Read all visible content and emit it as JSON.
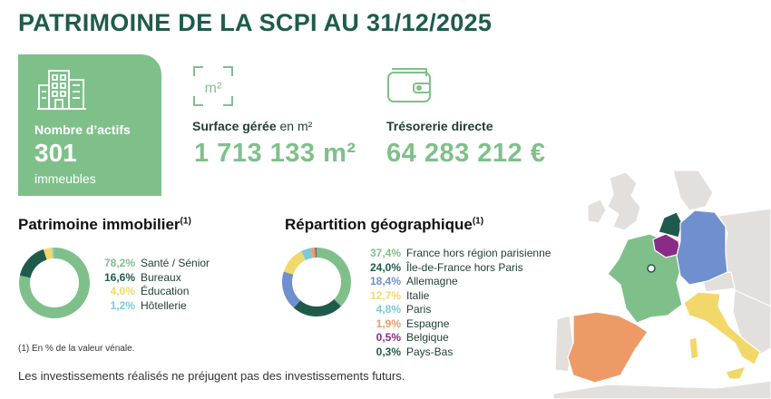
{
  "title": "PATRIMOINE DE LA SCPI AU 31/12/2025",
  "assets": {
    "label": "Nombre d’actifs",
    "count": "301",
    "unit": "immeubles",
    "icon": "building-icon",
    "bg_color": "#7fc08a"
  },
  "surface": {
    "icon_text": "m²",
    "label_bold": "Surface gérée",
    "label_rest": " en m²",
    "value": "1 713 133 m²"
  },
  "treasury": {
    "icon": "wallet-icon",
    "label": "Trésorerie directe",
    "value": "64 283 212 €"
  },
  "patrimoine": {
    "title": "Patrimoine immobilier",
    "note_mark": "(1)",
    "items": [
      {
        "pct": "78,2%",
        "label": "Santé / Sénior",
        "value": 78.2,
        "color": "#7fc08a"
      },
      {
        "pct": "16,6%",
        "label": "Bureaux",
        "value": 16.6,
        "color": "#1f5b4c"
      },
      {
        "pct": "4,0%",
        "label": "Éducation",
        "value": 4.0,
        "color": "#f2d86a"
      },
      {
        "pct": "1,2%",
        "label": "Hôtellerie",
        "value": 1.2,
        "color": "#7ec9d6"
      }
    ]
  },
  "geo": {
    "title": "Répartition géographique",
    "note_mark": "(1)",
    "items": [
      {
        "pct": "37,4%",
        "label": "France hors région parisienne",
        "value": 37.4,
        "color": "#7fc08a"
      },
      {
        "pct": "24,0%",
        "label": "Île-de-France hors Paris",
        "value": 24.0,
        "color": "#1f5b4c"
      },
      {
        "pct": "18,4%",
        "label": "Allemagne",
        "value": 18.4,
        "color": "#6f8fcf"
      },
      {
        "pct": "12,7%",
        "label": "Italie",
        "value": 12.7,
        "color": "#f2d86a"
      },
      {
        "pct": "4,8%",
        "label": "Paris",
        "value": 4.8,
        "color": "#7ec9d6"
      },
      {
        "pct": "1,9%",
        "label": "Espagne",
        "value": 1.9,
        "color": "#ee9a66"
      },
      {
        "pct": "0,5%",
        "label": "Belgique",
        "value": 0.5,
        "color": "#8a2c86"
      },
      {
        "pct": "0,3%",
        "label": "Pays-Bas",
        "value": 0.3,
        "color": "#1f5b4c"
      }
    ]
  },
  "footnote": "(1) En % de la valeur vénale.",
  "disclaimer": "Les investissements réalisés ne préjugent pas des investissements futurs."
}
